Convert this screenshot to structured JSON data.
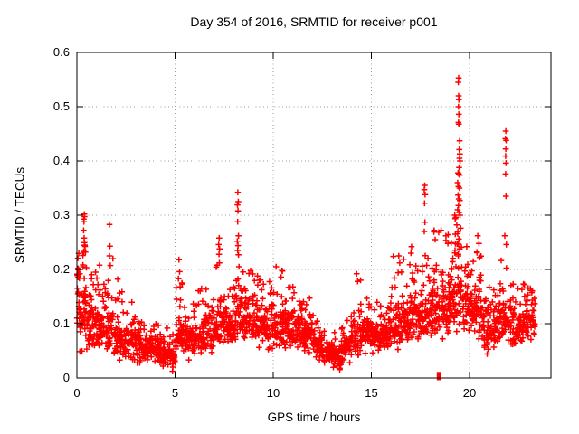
{
  "chart_data": {
    "type": "scatter",
    "title": "Day 354 of 2016, SRMTID for receiver p001",
    "xlabel": "GPS time / hours",
    "ylabel": "SRMTID / TECUs",
    "xlim": [
      0,
      24.15
    ],
    "ylim": [
      0,
      0.6
    ],
    "grid": true,
    "legend": "none",
    "marker": "plus-cross",
    "marker_color": "#ff0000",
    "grid_color": "#999999",
    "border_color": "#000000",
    "background_color": "#ffffff",
    "xticks": [
      {
        "v": 0,
        "label": "0"
      },
      {
        "v": 5,
        "label": "5"
      },
      {
        "v": 10,
        "label": "10"
      },
      {
        "v": 15,
        "label": "15"
      },
      {
        "v": 20,
        "label": "20"
      }
    ],
    "yticks": [
      {
        "v": 0.0,
        "label": "0"
      },
      {
        "v": 0.1,
        "label": "0.1"
      },
      {
        "v": 0.2,
        "label": "0.2"
      },
      {
        "v": 0.3,
        "label": "0.3"
      },
      {
        "v": 0.4,
        "label": "0.4"
      },
      {
        "v": 0.5,
        "label": "0.5"
      },
      {
        "v": 0.6,
        "label": "0.6"
      }
    ],
    "seed": 1354,
    "bands": [
      [
        0.0,
        0.15,
        0.05,
        0.22,
        22,
        0.23,
        2
      ],
      [
        0.15,
        0.3,
        0.04,
        0.15,
        18,
        0.2,
        3
      ],
      [
        0.3,
        0.5,
        0.06,
        0.23,
        26,
        0.302,
        8
      ],
      [
        0.5,
        1.0,
        0.04,
        0.15,
        48,
        0.22,
        6
      ],
      [
        1.0,
        1.5,
        0.04,
        0.15,
        48,
        0.21,
        8
      ],
      [
        1.5,
        1.85,
        0.04,
        0.14,
        32,
        0.285,
        7
      ],
      [
        1.85,
        2.3,
        0.03,
        0.12,
        40,
        0.185,
        5
      ],
      [
        2.3,
        3.0,
        0.025,
        0.11,
        60,
        0.14,
        4
      ],
      [
        3.0,
        3.6,
        0.02,
        0.1,
        52,
        0.125,
        3
      ],
      [
        3.6,
        4.2,
        0.02,
        0.095,
        52,
        0.12,
        3
      ],
      [
        4.2,
        4.7,
        0.015,
        0.08,
        44,
        0.11,
        3
      ],
      [
        4.7,
        5.05,
        0.01,
        0.075,
        30,
        0.1,
        2
      ],
      [
        5.05,
        5.55,
        0.03,
        0.13,
        40,
        0.185,
        6
      ],
      [
        5.55,
        6.05,
        0.03,
        0.11,
        40,
        0.14,
        4
      ],
      [
        6.05,
        6.55,
        0.035,
        0.12,
        42,
        0.165,
        5
      ],
      [
        6.55,
        7.05,
        0.04,
        0.13,
        42,
        0.175,
        5
      ],
      [
        7.05,
        7.4,
        0.05,
        0.14,
        30,
        0.21,
        5
      ],
      [
        7.4,
        8.0,
        0.05,
        0.15,
        50,
        0.19,
        6
      ],
      [
        8.0,
        8.45,
        0.05,
        0.16,
        40,
        0.23,
        8
      ],
      [
        8.45,
        9.0,
        0.05,
        0.16,
        46,
        0.2,
        6
      ],
      [
        9.0,
        9.5,
        0.05,
        0.16,
        46,
        0.19,
        5
      ],
      [
        9.5,
        10.0,
        0.05,
        0.15,
        46,
        0.185,
        5
      ],
      [
        10.0,
        10.5,
        0.05,
        0.15,
        46,
        0.2,
        5
      ],
      [
        10.5,
        11.0,
        0.045,
        0.14,
        46,
        0.17,
        5
      ],
      [
        11.0,
        11.5,
        0.045,
        0.135,
        46,
        0.165,
        4
      ],
      [
        11.5,
        12.0,
        0.04,
        0.125,
        46,
        0.15,
        4
      ],
      [
        12.0,
        12.5,
        0.03,
        0.1,
        44,
        0.13,
        3
      ],
      [
        12.5,
        13.0,
        0.02,
        0.075,
        40,
        0.1,
        2
      ],
      [
        13.0,
        13.45,
        0.013,
        0.065,
        38,
        0.09,
        2
      ],
      [
        13.45,
        13.95,
        0.025,
        0.09,
        40,
        0.12,
        3
      ],
      [
        13.95,
        14.5,
        0.04,
        0.12,
        44,
        0.19,
        5
      ],
      [
        14.5,
        15.0,
        0.04,
        0.12,
        44,
        0.155,
        4
      ],
      [
        15.0,
        15.5,
        0.04,
        0.12,
        44,
        0.15,
        4
      ],
      [
        15.5,
        16.0,
        0.045,
        0.125,
        44,
        0.155,
        4
      ],
      [
        16.0,
        16.5,
        0.05,
        0.14,
        46,
        0.23,
        6
      ],
      [
        16.5,
        17.0,
        0.055,
        0.15,
        46,
        0.245,
        6
      ],
      [
        17.0,
        17.5,
        0.06,
        0.16,
        46,
        0.22,
        6
      ],
      [
        17.5,
        18.0,
        0.065,
        0.17,
        46,
        0.25,
        8
      ],
      [
        18.0,
        18.5,
        0.07,
        0.18,
        46,
        0.27,
        7
      ],
      [
        18.5,
        19.0,
        0.07,
        0.19,
        46,
        0.28,
        7
      ],
      [
        19.0,
        19.6,
        0.08,
        0.22,
        55,
        0.3,
        10
      ],
      [
        19.6,
        20.1,
        0.08,
        0.19,
        46,
        0.27,
        7
      ],
      [
        20.1,
        20.6,
        0.07,
        0.18,
        46,
        0.26,
        7
      ],
      [
        20.6,
        21.1,
        0.04,
        0.14,
        40,
        0.19,
        4
      ],
      [
        21.1,
        21.55,
        0.05,
        0.14,
        40,
        0.18,
        4
      ],
      [
        21.55,
        22.1,
        0.06,
        0.16,
        44,
        0.22,
        6
      ],
      [
        22.1,
        22.6,
        0.05,
        0.14,
        42,
        0.175,
        5
      ],
      [
        22.6,
        23.05,
        0.06,
        0.15,
        42,
        0.175,
        5
      ],
      [
        23.05,
        23.35,
        0.06,
        0.16,
        22,
        0.17,
        2
      ]
    ],
    "spike_points": [
      [
        0.38,
        0.302
      ],
      [
        0.36,
        0.288
      ],
      [
        0.34,
        0.272
      ],
      [
        0.37,
        0.258
      ],
      [
        0.4,
        0.245
      ],
      [
        0.95,
        0.195
      ],
      [
        1.15,
        0.208
      ],
      [
        1.66,
        0.283
      ],
      [
        1.68,
        0.243
      ],
      [
        1.66,
        0.225
      ],
      [
        2.08,
        0.182
      ],
      [
        5.2,
        0.218
      ],
      [
        5.23,
        0.196
      ],
      [
        5.17,
        0.183
      ],
      [
        5.26,
        0.168
      ],
      [
        5.35,
        0.175
      ],
      [
        6.35,
        0.165
      ],
      [
        7.25,
        0.258
      ],
      [
        7.22,
        0.246
      ],
      [
        7.27,
        0.238
      ],
      [
        7.24,
        0.228
      ],
      [
        7.26,
        0.212
      ],
      [
        7.15,
        0.208
      ],
      [
        8.2,
        0.342
      ],
      [
        8.22,
        0.325
      ],
      [
        8.18,
        0.319
      ],
      [
        8.21,
        0.308
      ],
      [
        8.19,
        0.288
      ],
      [
        8.23,
        0.262
      ],
      [
        8.17,
        0.252
      ],
      [
        8.21,
        0.244
      ],
      [
        8.19,
        0.235
      ],
      [
        8.23,
        0.227
      ],
      [
        8.85,
        0.198
      ],
      [
        9.2,
        0.188
      ],
      [
        10.15,
        0.205
      ],
      [
        10.45,
        0.198
      ],
      [
        11.0,
        0.168
      ],
      [
        14.25,
        0.192
      ],
      [
        14.3,
        0.178
      ],
      [
        16.4,
        0.225
      ],
      [
        16.45,
        0.212
      ],
      [
        17.02,
        0.23
      ],
      [
        17.05,
        0.242
      ],
      [
        17.72,
        0.355
      ],
      [
        17.7,
        0.347
      ],
      [
        17.74,
        0.338
      ],
      [
        17.71,
        0.322
      ],
      [
        17.73,
        0.287
      ],
      [
        17.7,
        0.27
      ],
      [
        18.2,
        0.272
      ],
      [
        18.25,
        0.255
      ],
      [
        18.8,
        0.262
      ],
      [
        18.9,
        0.248
      ],
      [
        19.45,
        0.553
      ],
      [
        19.43,
        0.545
      ],
      [
        19.45,
        0.52
      ],
      [
        19.46,
        0.513
      ],
      [
        19.44,
        0.5
      ],
      [
        19.46,
        0.486
      ],
      [
        19.44,
        0.471
      ],
      [
        19.46,
        0.468
      ],
      [
        19.5,
        0.437
      ],
      [
        19.48,
        0.421
      ],
      [
        19.51,
        0.413
      ],
      [
        19.49,
        0.405
      ],
      [
        19.52,
        0.4
      ],
      [
        19.47,
        0.388
      ],
      [
        19.42,
        0.378
      ],
      [
        19.46,
        0.376
      ],
      [
        19.51,
        0.374
      ],
      [
        19.4,
        0.36
      ],
      [
        19.44,
        0.353
      ],
      [
        19.49,
        0.35
      ],
      [
        19.42,
        0.337
      ],
      [
        19.46,
        0.33
      ],
      [
        19.51,
        0.327
      ],
      [
        19.44,
        0.318
      ],
      [
        19.4,
        0.31
      ],
      [
        19.47,
        0.305
      ],
      [
        19.52,
        0.3
      ],
      [
        19.3,
        0.296
      ],
      [
        19.35,
        0.282
      ],
      [
        19.55,
        0.276
      ],
      [
        19.4,
        0.266
      ],
      [
        19.46,
        0.256
      ],
      [
        19.37,
        0.247
      ],
      [
        19.5,
        0.238
      ],
      [
        19.43,
        0.228
      ],
      [
        19.25,
        0.3
      ],
      [
        19.28,
        0.265
      ],
      [
        20.42,
        0.262
      ],
      [
        20.48,
        0.248
      ],
      [
        20.38,
        0.232
      ],
      [
        20.52,
        0.222
      ],
      [
        21.85,
        0.455
      ],
      [
        21.83,
        0.441
      ],
      [
        21.87,
        0.438
      ],
      [
        21.85,
        0.422
      ],
      [
        21.84,
        0.409
      ],
      [
        21.86,
        0.396
      ],
      [
        21.84,
        0.376
      ],
      [
        21.86,
        0.335
      ],
      [
        21.8,
        0.262
      ],
      [
        21.88,
        0.246
      ],
      [
        22.8,
        0.172
      ],
      [
        23.1,
        0.165
      ]
    ],
    "square_points": [
      [
        18.45,
        0.0
      ],
      [
        18.45,
        0.007
      ]
    ]
  }
}
